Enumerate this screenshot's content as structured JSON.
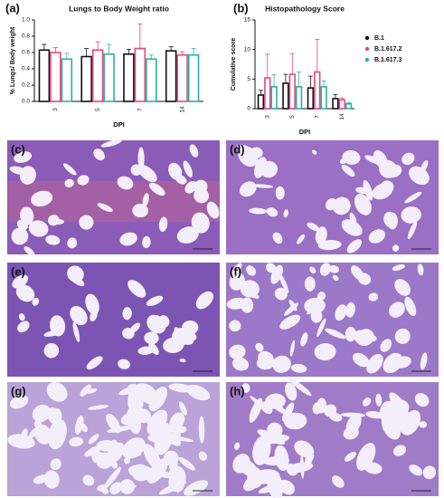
{
  "chart_data": [
    {
      "type": "bar",
      "panel_label": "(a)",
      "title": "Lungs to Body Weight ratio",
      "x_label": "DPI",
      "y_label": "% Lungs/ Body weight",
      "categories": [
        "3",
        "5",
        "7",
        "14"
      ],
      "series": [
        {
          "name": "B.1",
          "color": "#111111",
          "values": [
            0.63,
            0.55,
            0.58,
            0.62
          ],
          "errors": [
            0.07,
            0.1,
            0.06,
            0.05
          ]
        },
        {
          "name": "B.1.617.2",
          "color": "#e8457f",
          "values": [
            0.6,
            0.63,
            0.65,
            0.57
          ],
          "errors": [
            0.06,
            0.1,
            0.3,
            0.04
          ]
        },
        {
          "name": "B.1.617.3",
          "color": "#2ab0a8",
          "values": [
            0.52,
            0.58,
            0.52,
            0.57
          ],
          "errors": [
            0.07,
            0.12,
            0.05,
            0.08
          ]
        }
      ],
      "ylim": [
        0,
        1.0
      ],
      "yticks": [
        {
          "value": 0,
          "label": "0.0"
        },
        0.2,
        0.4,
        0.6,
        0.8,
        {
          "value": 1.0,
          "label": "1.0"
        }
      ]
    },
    {
      "type": "bar",
      "panel_label": "(b)",
      "title": "Histopathology Score",
      "x_label": "DPI",
      "y_label": "Cumulative score",
      "categories": [
        "3",
        "5",
        "7",
        "14"
      ],
      "series": [
        {
          "name": "B.1",
          "color": "#111111",
          "values": [
            2.3,
            4.3,
            3.5,
            1.7
          ],
          "errors": [
            0.8,
            1.5,
            2,
            0.7
          ]
        },
        {
          "name": "B.1.617.2",
          "color": "#e8457f",
          "values": [
            5.2,
            5.8,
            6.2,
            1.5
          ],
          "errors": [
            4,
            3.5,
            5.5,
            0.3
          ]
        },
        {
          "name": "B.1.617.3",
          "color": "#2ab0a8",
          "values": [
            3.7,
            3.7,
            3.7,
            0.8
          ],
          "errors": [
            2,
            2.5,
            1,
            0.2
          ]
        }
      ],
      "ylim": [
        0,
        15
      ],
      "yticks": [
        0,
        5,
        10,
        15
      ],
      "legend": "right"
    }
  ],
  "images": [
    {
      "label": "(c)"
    },
    {
      "label": "(d)"
    },
    {
      "label": "(e)"
    },
    {
      "label": "(f)"
    },
    {
      "label": "(g)"
    },
    {
      "label": "(h)"
    }
  ]
}
